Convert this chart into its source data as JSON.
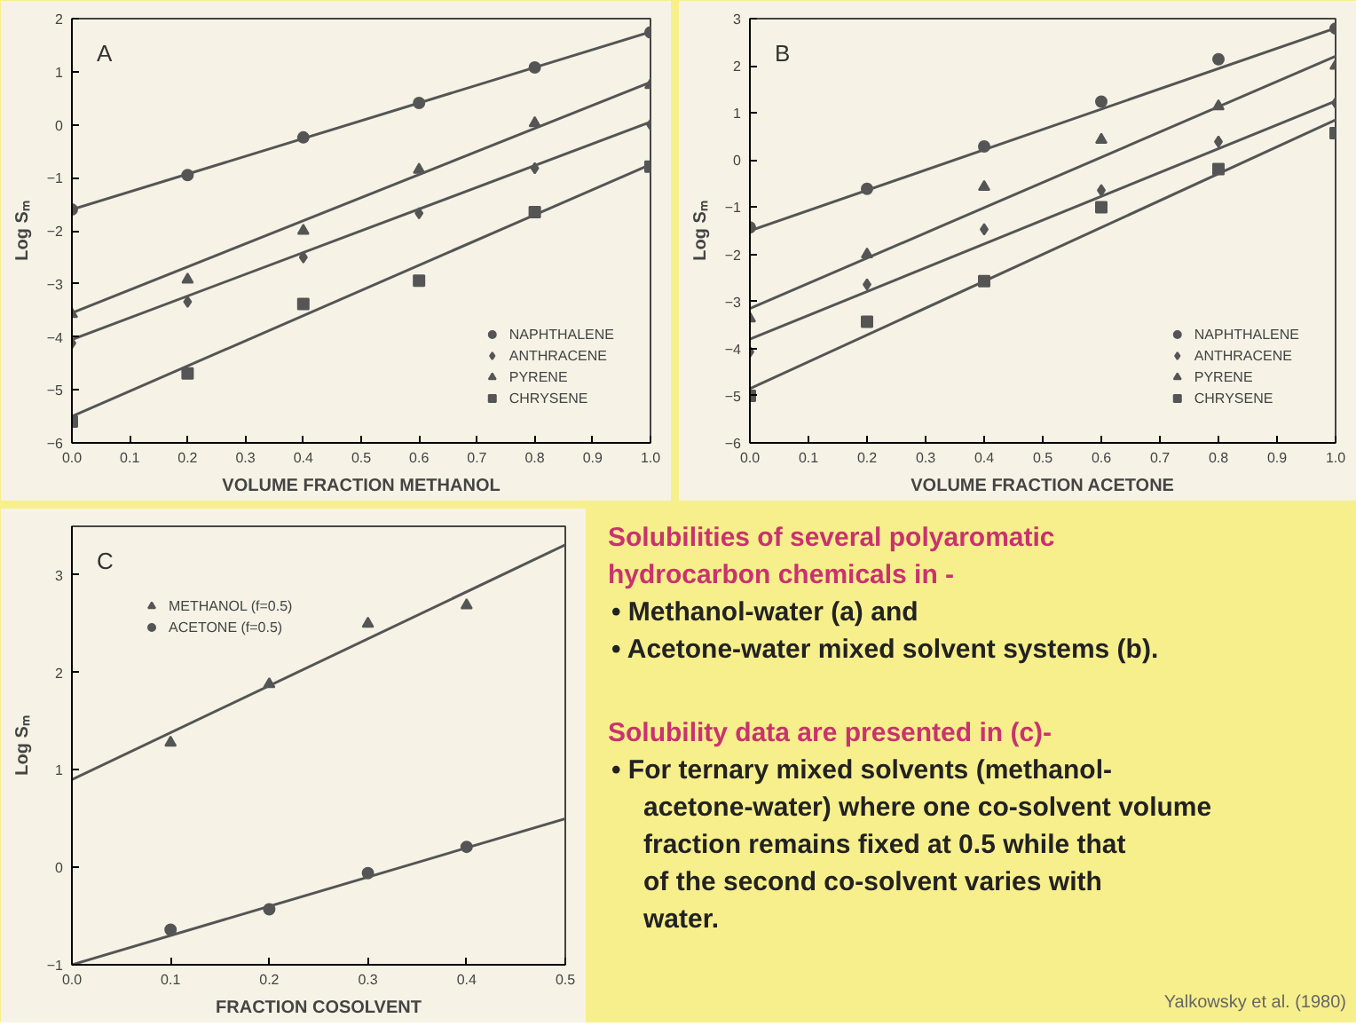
{
  "chart_data": [
    {
      "type": "scatter",
      "title": "A",
      "xlabel": "VOLUME FRACTION METHANOL",
      "ylabel": "Log Sₘ",
      "xlim": [
        0,
        1
      ],
      "ylim": [
        -6,
        2
      ],
      "xticks": [
        {
          "value": 0,
          "label": "0.0"
        },
        {
          "value": 0.1,
          "label": "0.1"
        },
        {
          "value": 0.2,
          "label": "0.2"
        },
        {
          "value": 0.3,
          "label": "0.3"
        },
        {
          "value": 0.4,
          "label": "0.4"
        },
        {
          "value": 0.5,
          "label": "0.5"
        },
        {
          "value": 0.6,
          "label": "0.6"
        },
        {
          "value": 0.7,
          "label": "0.7"
        },
        {
          "value": 0.8,
          "label": "0.8"
        },
        {
          "value": 0.9,
          "label": "0.9"
        },
        {
          "value": 1,
          "label": "1.0"
        }
      ],
      "yticks": [
        -6,
        -5,
        -4,
        -3,
        -2,
        -1,
        0,
        1,
        2
      ],
      "legend": "bottom right",
      "grid": false,
      "x": [
        0,
        0.2,
        0.4,
        0.6,
        0.8,
        1.0
      ],
      "series": [
        {
          "name": "NAPHTHALENE",
          "color": "#555555",
          "marker": "circle",
          "values": [
            -1.6,
            -0.95,
            -0.24,
            0.41,
            1.08,
            1.74
          ]
        },
        {
          "name": "ANTHRACENE",
          "color": "#555555",
          "marker": "diamond",
          "values": [
            -4.12,
            -3.34,
            -2.5,
            -1.67,
            -0.82,
            0.0
          ]
        },
        {
          "name": "PYRENE",
          "color": "#555555",
          "marker": "triangle",
          "values": [
            -3.57,
            -2.92,
            -2.0,
            -0.85,
            0.03,
            0.75
          ]
        },
        {
          "name": "CHRYSENE",
          "color": "#555555",
          "marker": "square",
          "values": [
            -5.6,
            -4.69,
            -3.38,
            -2.94,
            -1.65,
            -0.79
          ]
        },
        {
          "type": "line",
          "color": "#555555",
          "x": [
            0,
            1
          ],
          "values": [
            -1.6,
            1.75
          ]
        },
        {
          "type": "line",
          "color": "#555555",
          "x": [
            0,
            1
          ],
          "values": [
            -4.05,
            0.05
          ]
        },
        {
          "type": "line",
          "color": "#555555",
          "x": [
            0,
            1
          ],
          "values": [
            -3.55,
            0.8
          ]
        },
        {
          "type": "line",
          "color": "#555555",
          "x": [
            0,
            1
          ],
          "values": [
            -5.5,
            -0.75
          ]
        }
      ]
    },
    {
      "type": "scatter",
      "title": "B",
      "xlabel": "VOLUME FRACTION ACETONE",
      "ylabel": "Log Sₘ",
      "xlim": [
        0,
        1
      ],
      "ylim": [
        -6,
        3
      ],
      "xticks": [
        {
          "value": 0,
          "label": "0.0"
        },
        {
          "value": 0.1,
          "label": "0.1"
        },
        {
          "value": 0.2,
          "label": "0.2"
        },
        {
          "value": 0.3,
          "label": "0.3"
        },
        {
          "value": 0.4,
          "label": "0.4"
        },
        {
          "value": 0.5,
          "label": "0.5"
        },
        {
          "value": 0.6,
          "label": "0.6"
        },
        {
          "value": 0.7,
          "label": "0.7"
        },
        {
          "value": 0.8,
          "label": "0.8"
        },
        {
          "value": 0.9,
          "label": "0.9"
        },
        {
          "value": 1,
          "label": "1.0"
        }
      ],
      "yticks": [
        -6,
        -5,
        -4,
        -3,
        -2,
        -1,
        0,
        1,
        2,
        3
      ],
      "legend": "bottom right",
      "grid": false,
      "x": [
        0,
        0.2,
        0.4,
        0.6,
        0.8,
        1.0
      ],
      "series": [
        {
          "name": "NAPHTHALENE",
          "color": "#555555",
          "marker": "circle",
          "values": [
            -1.43,
            -0.61,
            0.29,
            1.24,
            2.14,
            2.79
          ]
        },
        {
          "name": "ANTHRACENE",
          "color": "#555555",
          "marker": "diamond",
          "values": [
            -4.07,
            -2.64,
            -1.47,
            -0.64,
            0.39,
            1.21
          ]
        },
        {
          "name": "PYRENE",
          "color": "#555555",
          "marker": "triangle",
          "values": [
            -3.36,
            -2.0,
            -0.57,
            0.43,
            1.14,
            2.0
          ]
        },
        {
          "name": "CHRYSENE",
          "color": "#555555",
          "marker": "square",
          "values": [
            -5.0,
            -3.43,
            -2.57,
            -1.0,
            -0.19,
            0.57
          ]
        },
        {
          "type": "line",
          "color": "#555555",
          "x": [
            0,
            1
          ],
          "values": [
            -1.5,
            2.8
          ]
        },
        {
          "type": "line",
          "color": "#555555",
          "x": [
            0,
            1
          ],
          "values": [
            -3.8,
            1.25
          ]
        },
        {
          "type": "line",
          "color": "#555555",
          "x": [
            0,
            1
          ],
          "values": [
            -3.15,
            2.2
          ]
        },
        {
          "type": "line",
          "color": "#555555",
          "x": [
            0,
            1
          ],
          "values": [
            -4.85,
            0.85
          ]
        }
      ]
    },
    {
      "type": "scatter",
      "title": "C",
      "xlabel": "FRACTION COSOLVENT",
      "ylabel": "Log Sₘ",
      "xlim": [
        0,
        0.5
      ],
      "ylim": [
        -1,
        3.5
      ],
      "xticks": [
        {
          "value": 0,
          "label": "0.0"
        },
        {
          "value": 0.1,
          "label": "0.1"
        },
        {
          "value": 0.2,
          "label": "0.2"
        },
        {
          "value": 0.3,
          "label": "0.3"
        },
        {
          "value": 0.4,
          "label": "0.4"
        },
        {
          "value": 0.5,
          "label": "0.5"
        }
      ],
      "yticks": [
        -1,
        0,
        1,
        2,
        3
      ],
      "legend": "top left",
      "grid": false,
      "x": [
        0.1,
        0.2,
        0.3,
        0.4
      ],
      "series": [
        {
          "name": "METHANOL (f=0.5)",
          "color": "#555555",
          "marker": "triangle",
          "values": [
            1.28,
            1.88,
            2.5,
            2.69
          ]
        },
        {
          "name": "ACETONE (f=0.5)",
          "color": "#555555",
          "marker": "circle",
          "values": [
            -0.64,
            -0.43,
            -0.06,
            0.21
          ]
        },
        {
          "type": "line",
          "color": "#555555",
          "x": [
            0,
            0.5
          ],
          "values": [
            0.9,
            3.31
          ]
        },
        {
          "type": "line",
          "color": "#555555",
          "x": [
            0,
            0.5
          ],
          "values": [
            -1.0,
            0.5
          ]
        }
      ]
    },
    {
      "type": "other",
      "title": "Solubilities of several polyaromatic hydrocarbon chemicals in -",
      "annotations": [
        "• Methanol-water (a) and",
        "• Acetone-water mixed solvent systems (b)."
      ]
    },
    {
      "type": "other",
      "title": "Solubility data are presented in (c)-",
      "subtitle": "Yalkowsky et al. (1980)",
      "annotations": [
        "• For ternary mixed solvents (methanol-acetone-water) where one co-solvent volume fraction remains fixed at 0.5 while that of the second co-solvent varies with water."
      ]
    }
  ]
}
